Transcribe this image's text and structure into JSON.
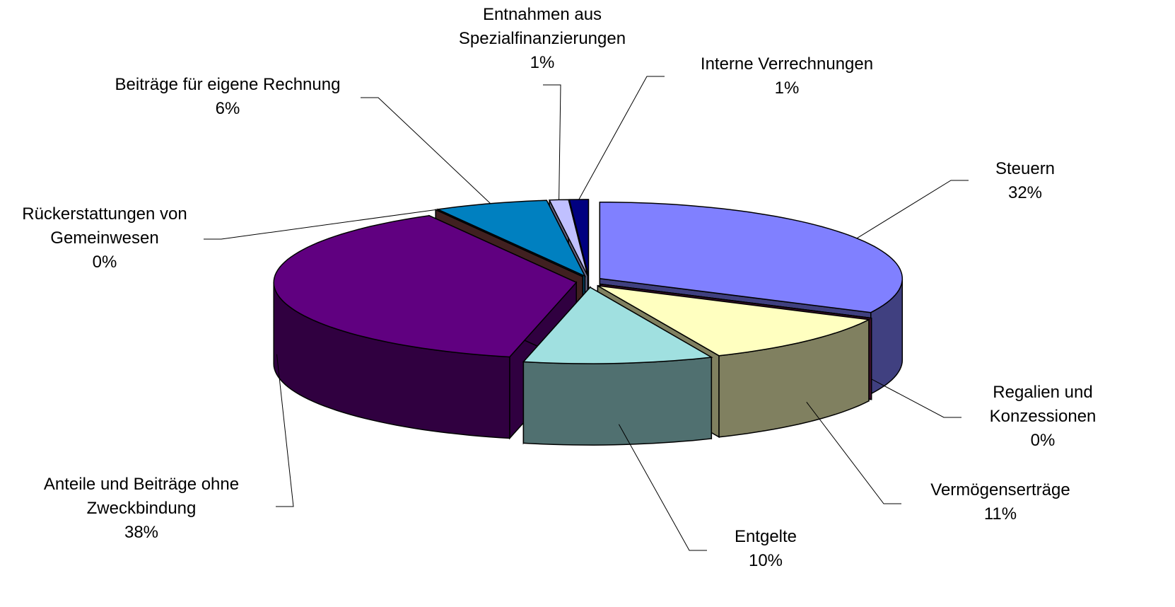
{
  "chart_data": {
    "type": "pie3d",
    "categories": [
      "Steuern",
      "Regalien und Konzessionen",
      "Vermögenserträge",
      "Entgelte",
      "Anteile und Beiträge ohne Zweckbindung",
      "Rückerstattungen von Gemeinwesen",
      "Beiträge für eigene Rechnung",
      "Entnahmen aus Spezialfinanzierungen",
      "Interne Verrechnungen"
    ],
    "values": [
      32,
      0,
      11,
      10,
      38,
      0,
      6,
      1,
      1
    ],
    "value_labels": [
      "32%",
      "0%",
      "11%",
      "10%",
      "38%",
      "0%",
      "6%",
      "1%",
      "1%"
    ],
    "colors": [
      "#8080ff",
      "#7f1f5f",
      "#ffffc0",
      "#a0e0e0",
      "#600080",
      "#804040",
      "#0080c0",
      "#c0c0ff",
      "#000080"
    ]
  }
}
